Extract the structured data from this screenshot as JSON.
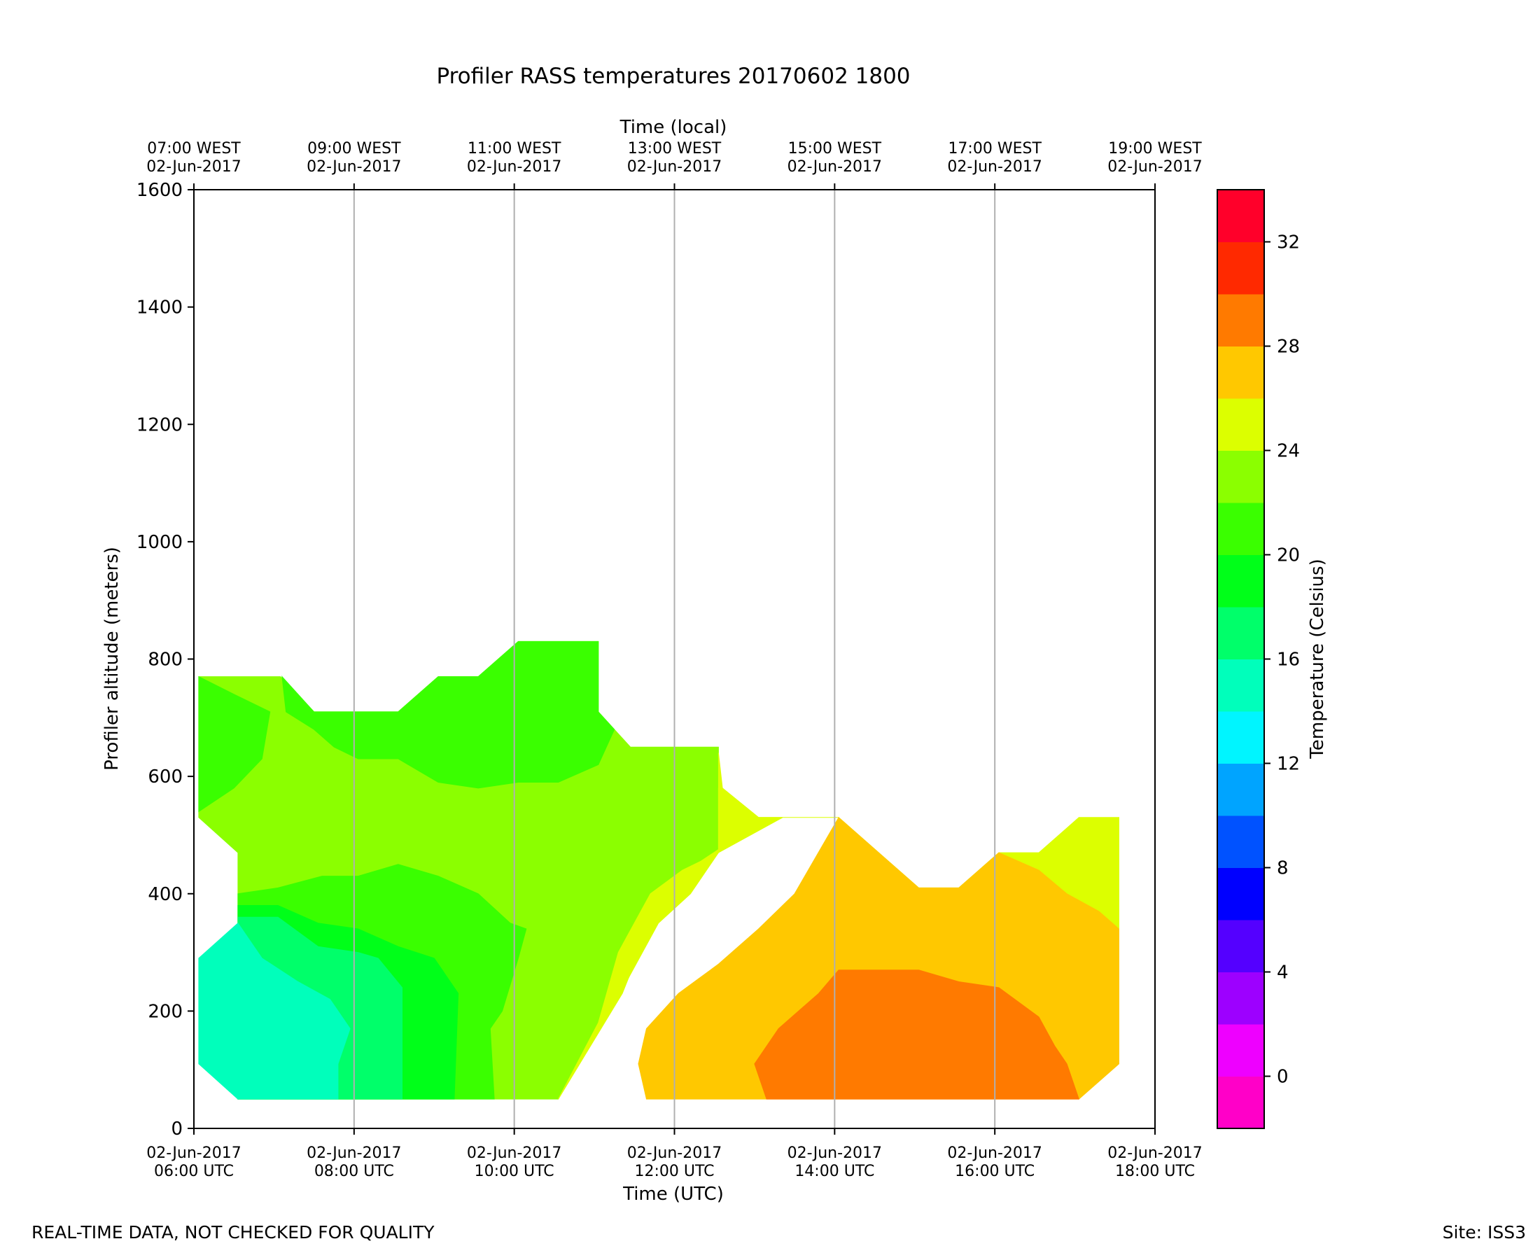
{
  "chart_data": {
    "type": "contour",
    "title": "Profiler RASS temperatures 20170602 1800",
    "xlabel": "Time (UTC)",
    "xlabel_top": "Time (local)",
    "ylabel": "Profiler altitude (meters)",
    "colorbar_label": "Temperature (Celsius)",
    "xlim_hours_utc": [
      6,
      18
    ],
    "ylim": [
      0,
      1600
    ],
    "yticks": [
      0,
      200,
      400,
      600,
      800,
      1000,
      1200,
      1400,
      1600
    ],
    "xticks_bottom": [
      {
        "hour": 6,
        "date": "02-Jun-2017",
        "time": "06:00 UTC"
      },
      {
        "hour": 8,
        "date": "02-Jun-2017",
        "time": "08:00 UTC"
      },
      {
        "hour": 10,
        "date": "02-Jun-2017",
        "time": "10:00 UTC"
      },
      {
        "hour": 12,
        "date": "02-Jun-2017",
        "time": "12:00 UTC"
      },
      {
        "hour": 14,
        "date": "02-Jun-2017",
        "time": "14:00 UTC"
      },
      {
        "hour": 16,
        "date": "02-Jun-2017",
        "time": "16:00 UTC"
      },
      {
        "hour": 18,
        "date": "02-Jun-2017",
        "time": "18:00 UTC"
      }
    ],
    "xticks_top": [
      {
        "hour": 6,
        "time": "07:00 WEST",
        "date": "02-Jun-2017"
      },
      {
        "hour": 8,
        "time": "09:00 WEST",
        "date": "02-Jun-2017"
      },
      {
        "hour": 10,
        "time": "11:00 WEST",
        "date": "02-Jun-2017"
      },
      {
        "hour": 12,
        "time": "13:00 WEST",
        "date": "02-Jun-2017"
      },
      {
        "hour": 14,
        "time": "15:00 WEST",
        "date": "02-Jun-2017"
      },
      {
        "hour": 16,
        "time": "17:00 WEST",
        "date": "02-Jun-2017"
      },
      {
        "hour": 18,
        "time": "19:00 WEST",
        "date": "02-Jun-2017"
      }
    ],
    "grid": "vertical",
    "colorbar": {
      "min": -2,
      "max": 34,
      "step": 2,
      "ticks": [
        0,
        4,
        8,
        12,
        16,
        20,
        24,
        28,
        32
      ],
      "colors": [
        "#ff00c8",
        "#ee00ff",
        "#9d00ff",
        "#5400ff",
        "#0000ff",
        "#0052ff",
        "#00a4ff",
        "#00f5ff",
        "#00ffbb",
        "#00ff6a",
        "#00ff19",
        "#3aff00",
        "#8bff00",
        "#dcff00",
        "#ffc800",
        "#ff7a00",
        "#ff2900",
        "#ff002a"
      ]
    },
    "regions": [
      {
        "temp_range": [
          22,
          24
        ],
        "color": "#8bff00",
        "points": [
          [
            6.06,
            770
          ],
          [
            7.08,
            770
          ],
          [
            7.5,
            710
          ],
          [
            8.55,
            710
          ],
          [
            9.05,
            770
          ],
          [
            9.55,
            770
          ],
          [
            10.05,
            830
          ],
          [
            11.05,
            830
          ],
          [
            11.05,
            710
          ],
          [
            11.45,
            650
          ],
          [
            12.55,
            650
          ],
          [
            12.55,
            580
          ],
          [
            12.55,
            470
          ],
          [
            12.1,
            440
          ],
          [
            11.7,
            400
          ],
          [
            11.3,
            300
          ],
          [
            11.05,
            180
          ],
          [
            10.55,
            50
          ],
          [
            6.55,
            50
          ],
          [
            6.55,
            470
          ],
          [
            6.06,
            530
          ]
        ]
      },
      {
        "temp_range": [
          20,
          22
        ],
        "color": "#3aff00",
        "points": [
          [
            6.06,
            770
          ],
          [
            6.5,
            740
          ],
          [
            6.95,
            710
          ],
          [
            6.85,
            630
          ],
          [
            6.5,
            580
          ],
          [
            6.06,
            540
          ]
        ]
      },
      {
        "temp_range": [
          20,
          22
        ],
        "color": "#3aff00",
        "points": [
          [
            7.1,
            770
          ],
          [
            7.5,
            710
          ],
          [
            8.55,
            710
          ],
          [
            9.05,
            770
          ],
          [
            9.55,
            770
          ],
          [
            10.05,
            830
          ],
          [
            11.05,
            830
          ],
          [
            11.05,
            710
          ],
          [
            11.25,
            680
          ],
          [
            11.05,
            620
          ],
          [
            10.55,
            590
          ],
          [
            10.05,
            590
          ],
          [
            9.55,
            580
          ],
          [
            9.05,
            590
          ],
          [
            8.55,
            630
          ],
          [
            8.05,
            630
          ],
          [
            7.75,
            650
          ],
          [
            7.5,
            680
          ],
          [
            7.15,
            710
          ]
        ]
      },
      {
        "temp_range": [
          20,
          22
        ],
        "color": "#3aff00",
        "points": [
          [
            6.55,
            400
          ],
          [
            7.05,
            410
          ],
          [
            7.6,
            430
          ],
          [
            8.05,
            430
          ],
          [
            8.55,
            450
          ],
          [
            9.05,
            430
          ],
          [
            9.55,
            400
          ],
          [
            9.95,
            350
          ],
          [
            10.15,
            340
          ],
          [
            10.05,
            290
          ],
          [
            9.85,
            200
          ],
          [
            9.7,
            170
          ],
          [
            9.75,
            50
          ],
          [
            6.55,
            50
          ]
        ]
      },
      {
        "temp_range": [
          18,
          20
        ],
        "color": "#00ff19",
        "points": [
          [
            6.55,
            380
          ],
          [
            7.05,
            380
          ],
          [
            7.55,
            350
          ],
          [
            8.05,
            340
          ],
          [
            8.55,
            310
          ],
          [
            9.0,
            290
          ],
          [
            9.3,
            230
          ],
          [
            9.25,
            50
          ],
          [
            6.55,
            50
          ]
        ]
      },
      {
        "temp_range": [
          16,
          18
        ],
        "color": "#00ff6a",
        "points": [
          [
            6.55,
            360
          ],
          [
            7.05,
            360
          ],
          [
            7.55,
            310
          ],
          [
            8.05,
            300
          ],
          [
            8.3,
            290
          ],
          [
            8.6,
            240
          ],
          [
            8.6,
            50
          ],
          [
            6.55,
            50
          ]
        ]
      },
      {
        "temp_range": [
          14,
          16
        ],
        "color": "#00ffbb",
        "points": [
          [
            6.06,
            290
          ],
          [
            6.55,
            350
          ],
          [
            6.85,
            290
          ],
          [
            7.3,
            250
          ],
          [
            7.7,
            220
          ],
          [
            7.95,
            170
          ],
          [
            7.8,
            110
          ],
          [
            7.8,
            50
          ],
          [
            6.55,
            50
          ],
          [
            6.06,
            110
          ]
        ]
      },
      {
        "temp_range": [
          24,
          26
        ],
        "color": "#dcff00",
        "points": [
          [
            11.7,
            400
          ],
          [
            12.1,
            440
          ],
          [
            12.55,
            470
          ],
          [
            12.55,
            580
          ],
          [
            12.6,
            580
          ],
          [
            13.05,
            530
          ],
          [
            14.05,
            530
          ],
          [
            15.05,
            410
          ],
          [
            15.55,
            410
          ],
          [
            16.05,
            470
          ],
          [
            16.55,
            470
          ],
          [
            17.05,
            530
          ],
          [
            17.55,
            530
          ],
          [
            17.55,
            340
          ],
          [
            17.3,
            370
          ],
          [
            16.9,
            400
          ],
          [
            16.55,
            440
          ],
          [
            16.05,
            470
          ],
          [
            15.55,
            410
          ],
          [
            15.05,
            410
          ],
          [
            14.05,
            530
          ],
          [
            13.35,
            530
          ],
          [
            12.55,
            470
          ],
          [
            12.2,
            400
          ],
          [
            11.8,
            350
          ],
          [
            11.4,
            250
          ],
          [
            10.55,
            50
          ],
          [
            10.55,
            50
          ],
          [
            11.05,
            180
          ],
          [
            11.3,
            300
          ]
        ]
      },
      {
        "temp_range": [
          24,
          26
        ],
        "color": "#dcff00",
        "points": [
          [
            10.55,
            50
          ],
          [
            11.35,
            230
          ],
          [
            11.7,
            350
          ],
          [
            12.05,
            430
          ],
          [
            12.6,
            480
          ],
          [
            13.35,
            530
          ],
          [
            13.05,
            530
          ],
          [
            12.6,
            580
          ],
          [
            12.55,
            640
          ],
          [
            12.55,
            580
          ],
          [
            12.55,
            470
          ],
          [
            12.1,
            440
          ],
          [
            11.7,
            400
          ],
          [
            11.3,
            300
          ],
          [
            11.05,
            180
          ],
          [
            10.55,
            50
          ]
        ]
      },
      {
        "temp_range": [
          26,
          28
        ],
        "color": "#ffc800",
        "points": [
          [
            11.65,
            50
          ],
          [
            11.55,
            110
          ],
          [
            11.65,
            170
          ],
          [
            12.05,
            230
          ],
          [
            12.55,
            280
          ],
          [
            13.05,
            340
          ],
          [
            13.5,
            400
          ],
          [
            14.05,
            530
          ],
          [
            15.05,
            410
          ],
          [
            15.55,
            410
          ],
          [
            16.05,
            470
          ],
          [
            16.55,
            440
          ],
          [
            16.9,
            400
          ],
          [
            17.3,
            370
          ],
          [
            17.55,
            340
          ],
          [
            17.55,
            110
          ],
          [
            17.05,
            50
          ]
        ]
      },
      {
        "temp_range": [
          28,
          30
        ],
        "color": "#ff7a00",
        "points": [
          [
            13.15,
            50
          ],
          [
            13.0,
            110
          ],
          [
            13.3,
            170
          ],
          [
            13.8,
            230
          ],
          [
            14.05,
            270
          ],
          [
            15.05,
            270
          ],
          [
            15.55,
            250
          ],
          [
            16.05,
            240
          ],
          [
            16.55,
            190
          ],
          [
            16.75,
            140
          ],
          [
            16.9,
            110
          ],
          [
            17.05,
            50
          ]
        ]
      }
    ]
  },
  "footer": {
    "left": "REAL-TIME DATA, NOT CHECKED FOR QUALITY",
    "right": "Site: ISS3"
  }
}
